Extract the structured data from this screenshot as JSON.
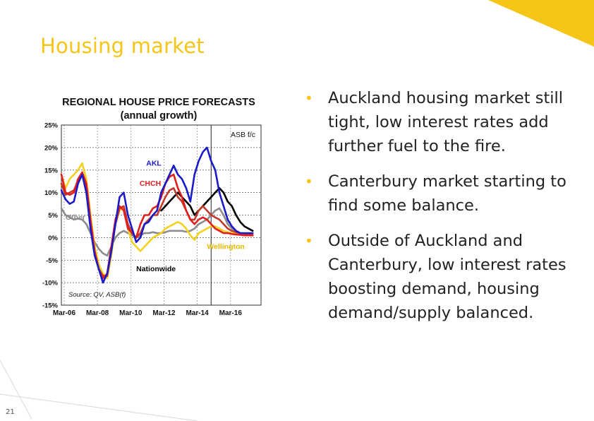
{
  "slide": {
    "title": "Housing market",
    "page_number": "21",
    "accent_color": "#F5C518"
  },
  "bullets": [
    {
      "text": "Auckland housing market still tight, low interest rates add further fuel to the fire."
    },
    {
      "text": "Canterbury market starting to find some balance."
    },
    {
      "text": "Outside of Auckland and Canterbury, low interest rates boosting demand, housing demand/supply balanced."
    }
  ],
  "chart_data": {
    "type": "line",
    "title": "REGIONAL  HOUSE  PRICE  FORECASTS",
    "subtitle": "(annual growth)",
    "xlabel": "",
    "ylabel": "",
    "ylim": [
      -15,
      25
    ],
    "yticks": [
      25,
      20,
      15,
      10,
      5,
      0,
      -5,
      -10,
      -15
    ],
    "ytick_labels": [
      "25%",
      "20%",
      "15%",
      "10%",
      "5%",
      "0%",
      "-5%",
      "-10%",
      "-15%"
    ],
    "xlim": [
      2006.0,
      2018.0
    ],
    "xticks": [
      2006.167,
      2008.167,
      2010.167,
      2012.167,
      2014.167,
      2016.167
    ],
    "xtick_labels": [
      "Mar-06",
      "Mar-08",
      "Mar-10",
      "Mar-12",
      "Mar-14",
      "Mar-16"
    ],
    "grid": true,
    "forecast_start": 2015.0,
    "forecast_label": "ASB f/c",
    "source": "Source:  QV, ASB(f)",
    "series": [
      {
        "name": "AKL",
        "color": "#1A1AC8",
        "x": [
          2006.0,
          2006.25,
          2006.5,
          2006.75,
          2007.0,
          2007.25,
          2007.5,
          2007.75,
          2008.0,
          2008.25,
          2008.5,
          2008.75,
          2009.0,
          2009.25,
          2009.5,
          2009.75,
          2010.0,
          2010.25,
          2010.5,
          2010.75,
          2011.0,
          2011.25,
          2011.5,
          2011.75,
          2012.0,
          2012.25,
          2012.5,
          2012.75,
          2013.0,
          2013.25,
          2013.5,
          2013.75,
          2014.0,
          2014.25,
          2014.5,
          2014.75,
          2015.0,
          2015.25,
          2015.5,
          2015.75,
          2016.0,
          2016.25,
          2016.5,
          2016.75,
          2017.0,
          2017.25,
          2017.5
        ],
        "values": [
          10.5,
          8.5,
          7.5,
          8,
          12,
          14,
          10,
          2,
          -4,
          -7,
          -10,
          -8,
          -3,
          3,
          9,
          10,
          5,
          2,
          -1,
          0,
          3,
          3.5,
          5,
          6,
          10,
          12,
          14,
          16,
          14,
          13,
          11,
          8,
          14,
          17,
          19,
          20,
          17,
          15,
          10,
          7,
          4,
          2.5,
          1.5,
          1,
          1,
          1,
          1
        ]
      },
      {
        "name": "CHCH",
        "color": "#E01E1E",
        "x": [
          2006.0,
          2006.25,
          2006.5,
          2006.75,
          2007.0,
          2007.25,
          2007.5,
          2007.75,
          2008.0,
          2008.25,
          2008.5,
          2008.75,
          2009.0,
          2009.25,
          2009.5,
          2009.75,
          2010.0,
          2010.25,
          2010.5,
          2010.75,
          2011.0,
          2011.25,
          2011.5,
          2011.75,
          2012.0,
          2012.25,
          2012.5,
          2012.75,
          2013.0,
          2013.25,
          2013.5,
          2013.75,
          2014.0,
          2014.25,
          2014.5,
          2014.75,
          2015.0,
          2015.25,
          2015.5,
          2015.75,
          2016.0,
          2016.25,
          2016.5,
          2016.75,
          2017.0,
          2017.25,
          2017.5
        ],
        "values": [
          14,
          10,
          9.5,
          10,
          13,
          14.5,
          12,
          4,
          -3,
          -7,
          -9,
          -8,
          -2,
          4,
          7,
          6,
          2,
          1,
          0,
          3,
          5,
          5,
          6.5,
          7,
          9,
          12,
          13.5,
          14,
          11,
          9,
          6,
          4,
          3,
          4,
          4.5,
          4,
          3,
          2,
          1.5,
          1,
          1,
          0.8,
          0.7,
          0.6,
          0.5,
          0.5,
          0.5
        ]
      },
      {
        "name": "",
        "color": "#000000",
        "x": [
          2012.0,
          2012.25,
          2012.5,
          2012.75,
          2013.0,
          2013.25,
          2013.5,
          2013.75,
          2014.0,
          2014.25,
          2014.5,
          2014.75,
          2015.0,
          2015.25,
          2015.5,
          2015.75,
          2016.0,
          2016.25,
          2016.5,
          2016.75,
          2017.0,
          2017.25,
          2017.5
        ],
        "values": [
          6,
          7,
          8,
          9,
          10,
          9,
          8,
          7,
          5,
          6,
          7,
          8,
          9,
          10,
          11,
          10,
          8,
          7,
          5,
          3.5,
          2.5,
          2,
          1.5
        ]
      },
      {
        "name": "Wellington",
        "color": "#F2D21E",
        "x": [
          2006.0,
          2006.25,
          2006.5,
          2006.75,
          2007.0,
          2007.25,
          2007.5,
          2007.75,
          2008.0,
          2008.25,
          2008.5,
          2008.75,
          2009.0,
          2009.25,
          2009.5,
          2009.75,
          2010.0,
          2010.25,
          2010.5,
          2010.75,
          2011.0,
          2011.25,
          2011.5,
          2011.75,
          2012.0,
          2012.25,
          2012.5,
          2012.75,
          2013.0,
          2013.25,
          2013.5,
          2013.75,
          2014.0,
          2014.25,
          2014.5,
          2014.75,
          2015.0,
          2015.25,
          2015.5,
          2015.75,
          2016.0,
          2016.25,
          2016.5,
          2016.75,
          2017.0,
          2017.25,
          2017.5
        ],
        "values": [
          14,
          11,
          13,
          14,
          15,
          16.5,
          13,
          5,
          -2,
          -6,
          -8,
          -9,
          -4,
          3,
          6,
          7,
          2,
          -1,
          -2,
          -3,
          -2,
          -1,
          0,
          0.5,
          1,
          2,
          2.5,
          3,
          3.5,
          3,
          2,
          0.5,
          -0.5,
          1,
          1.5,
          2,
          2.5,
          2.5,
          2,
          1.5,
          1.2,
          1,
          0.9,
          0.8,
          0.7,
          0.5,
          0.5
        ]
      },
      {
        "name": "Other",
        "color": "#8C8C8C",
        "x": [
          2006.0,
          2006.25,
          2006.5,
          2006.75,
          2007.0,
          2007.25,
          2007.5,
          2007.75,
          2008.0,
          2008.25,
          2008.5,
          2008.75,
          2009.0,
          2009.25,
          2009.5,
          2009.75,
          2010.0,
          2010.25,
          2010.5,
          2010.75,
          2011.0,
          2011.25,
          2011.5,
          2011.75,
          2012.0,
          2012.25,
          2012.5,
          2012.75,
          2013.0,
          2013.25,
          2013.5,
          2013.75,
          2014.0,
          2014.25,
          2014.5,
          2014.75,
          2015.0,
          2015.25,
          2015.5,
          2015.75,
          2016.0,
          2016.25,
          2016.5,
          2016.75,
          2017.0,
          2017.25,
          2017.5
        ],
        "values": [
          6.5,
          5,
          4.5,
          4,
          4.2,
          4,
          3,
          1,
          -1,
          -2.5,
          -3.5,
          -4,
          -2,
          0,
          1,
          1.5,
          1,
          0.5,
          0,
          0.5,
          1,
          1,
          1.2,
          1,
          1,
          1.2,
          1.5,
          1.5,
          1.5,
          1.5,
          1.3,
          1.5,
          2,
          3,
          3.5,
          4,
          5,
          6,
          6.5,
          5,
          3,
          2,
          1.5,
          1,
          0.8,
          0.6,
          0.5
        ]
      },
      {
        "name": "Nationwide",
        "color": "#C0392B",
        "x": [
          2006.0,
          2006.25,
          2006.5,
          2006.75,
          2007.0,
          2007.25,
          2007.5,
          2007.75,
          2008.0,
          2008.25,
          2008.5,
          2008.75,
          2009.0,
          2009.25,
          2009.5,
          2009.75,
          2010.0,
          2010.25,
          2010.5,
          2010.75,
          2011.0,
          2011.25,
          2011.5,
          2011.75,
          2012.0,
          2012.25,
          2012.5,
          2012.75,
          2013.0,
          2013.25,
          2013.5,
          2013.75,
          2014.0,
          2014.25,
          2014.5,
          2014.75,
          2015.0,
          2015.25,
          2015.5,
          2015.75,
          2016.0,
          2016.25,
          2016.5,
          2016.75,
          2017.0,
          2017.25,
          2017.5
        ],
        "values": [
          12,
          9.5,
          10,
          10.5,
          12.5,
          14,
          11,
          3,
          -3.5,
          -7,
          -8.5,
          -8.5,
          -3,
          3,
          6.5,
          7,
          3,
          1,
          0,
          1,
          3,
          4,
          5,
          5,
          7,
          9,
          10.5,
          11,
          9,
          8,
          6,
          4,
          4,
          6,
          7,
          6,
          5,
          4.5,
          4,
          3,
          2,
          1.5,
          1.2,
          1,
          0.9,
          0.7,
          0.6
        ]
      }
    ],
    "annotations": [
      {
        "text": "AKL",
        "x": 2011.1,
        "y": 16,
        "color": "#1A1AC8"
      },
      {
        "text": "CHCH",
        "x": 2010.7,
        "y": 11.5,
        "color": "#E01E1E"
      },
      {
        "text": "Other",
        "x": 2006.25,
        "y": 4,
        "color": "#8C8C8C"
      },
      {
        "text": "Nationwide",
        "x": 2010.5,
        "y": -7.5,
        "color": "#000000"
      },
      {
        "text": "Wellington",
        "x": 2014.75,
        "y": -2.5,
        "color": "#E5B800"
      }
    ]
  }
}
